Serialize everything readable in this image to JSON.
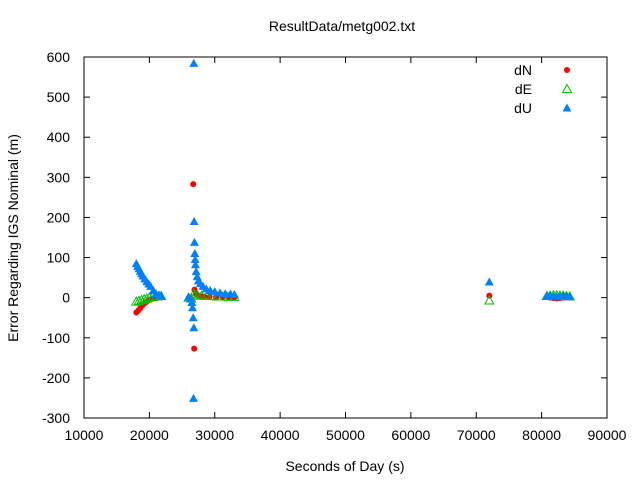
{
  "chart_data": {
    "type": "scatter",
    "title": "ResultData/metg002.txt",
    "xlabel": "Seconds of Day (s)",
    "ylabel": "Error Regarding IGS Nominal (m)",
    "xlim": [
      10000,
      90000
    ],
    "ylim": [
      -300,
      600
    ],
    "x_ticks": [
      "10000",
      "20000",
      "30000",
      "40000",
      "50000",
      "60000",
      "70000",
      "80000",
      "90000"
    ],
    "y_ticks": [
      "-300",
      "-200",
      "-100",
      "0",
      "100",
      "200",
      "300",
      "400",
      "500",
      "600"
    ],
    "grid": false,
    "legend_position": "top-right",
    "series": [
      {
        "name": "dN",
        "color": "#ff0000",
        "marker": "filled-circle",
        "points": [
          [
            18000,
            -37
          ],
          [
            18300,
            -32
          ],
          [
            18600,
            -26
          ],
          [
            18900,
            -20
          ],
          [
            19200,
            -15
          ],
          [
            19500,
            -11
          ],
          [
            19800,
            -7
          ],
          [
            20200,
            -4
          ],
          [
            20600,
            -2
          ],
          [
            21000,
            -1
          ],
          [
            21400,
            0
          ],
          [
            21800,
            0
          ],
          [
            26700,
            283
          ],
          [
            26850,
            -127
          ],
          [
            26900,
            20
          ],
          [
            27100,
            10
          ],
          [
            27400,
            6
          ],
          [
            27800,
            4
          ],
          [
            28400,
            3
          ],
          [
            29200,
            2
          ],
          [
            30200,
            2
          ],
          [
            31200,
            1
          ],
          [
            32200,
            1
          ],
          [
            33000,
            1
          ],
          [
            72000,
            5
          ],
          [
            80800,
            2
          ],
          [
            81300,
            0
          ],
          [
            81800,
            -1
          ],
          [
            82300,
            -2
          ],
          [
            82800,
            -1
          ],
          [
            83300,
            0
          ],
          [
            83800,
            1
          ],
          [
            84300,
            0
          ]
        ]
      },
      {
        "name": "dE",
        "color": "#00c000",
        "marker": "open-triangle",
        "points": [
          [
            18000,
            -10
          ],
          [
            18400,
            -8
          ],
          [
            18800,
            -6
          ],
          [
            19200,
            -4
          ],
          [
            19600,
            -2
          ],
          [
            20000,
            0
          ],
          [
            20500,
            2
          ],
          [
            21000,
            3
          ],
          [
            21500,
            4
          ],
          [
            21800,
            4
          ],
          [
            26000,
            0
          ],
          [
            26400,
            -2
          ],
          [
            26800,
            10
          ],
          [
            27000,
            6
          ],
          [
            27400,
            5
          ],
          [
            28000,
            5
          ],
          [
            28800,
            4
          ],
          [
            29600,
            4
          ],
          [
            30400,
            3
          ],
          [
            31200,
            3
          ],
          [
            32000,
            2
          ],
          [
            33000,
            2
          ],
          [
            72000,
            -7
          ],
          [
            80800,
            4
          ],
          [
            81300,
            5
          ],
          [
            81800,
            6
          ],
          [
            82300,
            6
          ],
          [
            82800,
            5
          ],
          [
            83300,
            5
          ],
          [
            83800,
            4
          ],
          [
            84300,
            3
          ]
        ]
      },
      {
        "name": "dU",
        "color": "#0080ff",
        "marker": "filled-triangle",
        "points": [
          [
            18000,
            85
          ],
          [
            18200,
            78
          ],
          [
            18400,
            72
          ],
          [
            18600,
            66
          ],
          [
            18800,
            60
          ],
          [
            19000,
            54
          ],
          [
            19300,
            47
          ],
          [
            19600,
            40
          ],
          [
            19900,
            34
          ],
          [
            20200,
            28
          ],
          [
            20600,
            18
          ],
          [
            21000,
            10
          ],
          [
            21400,
            6
          ],
          [
            21800,
            5
          ],
          [
            26000,
            2
          ],
          [
            26300,
            -2
          ],
          [
            26500,
            -12
          ],
          [
            26600,
            -25
          ],
          [
            26700,
            -50
          ],
          [
            26800,
            -75
          ],
          [
            26750,
            -251
          ],
          [
            26800,
            584
          ],
          [
            26850,
            190
          ],
          [
            26900,
            138
          ],
          [
            26950,
            110
          ],
          [
            27000,
            95
          ],
          [
            27050,
            82
          ],
          [
            27150,
            65
          ],
          [
            27300,
            52
          ],
          [
            27500,
            42
          ],
          [
            27800,
            35
          ],
          [
            28200,
            28
          ],
          [
            28700,
            22
          ],
          [
            29300,
            18
          ],
          [
            30000,
            15
          ],
          [
            30800,
            12
          ],
          [
            31600,
            10
          ],
          [
            32400,
            9
          ],
          [
            33000,
            8
          ],
          [
            72000,
            39
          ],
          [
            80800,
            5
          ],
          [
            81300,
            4
          ],
          [
            81800,
            3
          ],
          [
            82300,
            2
          ],
          [
            82800,
            3
          ],
          [
            83300,
            4
          ],
          [
            83800,
            3
          ],
          [
            84300,
            2
          ]
        ]
      }
    ]
  }
}
